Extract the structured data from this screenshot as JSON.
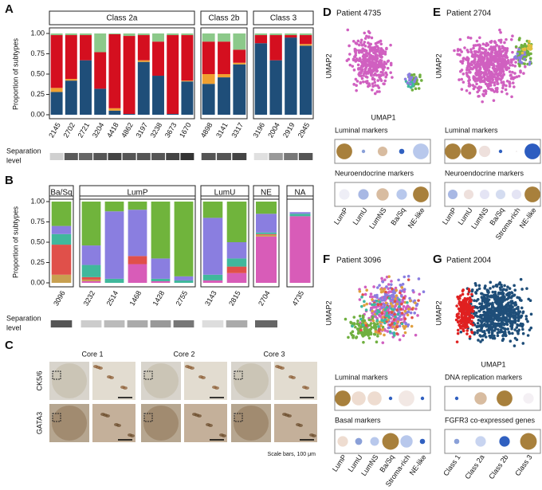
{
  "chart_data": [
    {
      "type": "stacked-bar",
      "panel_label": "A",
      "ylabel": "Proportion of subtypes",
      "ylim": [
        0,
        1
      ],
      "yticks": [
        {
          "value": 0,
          "label": "0.00"
        },
        {
          "value": 0.25,
          "label": "0.25"
        },
        {
          "value": 0.5,
          "label": "0.50"
        },
        {
          "value": 0.75,
          "label": "0.75"
        },
        {
          "value": 1,
          "label": "1.00"
        }
      ],
      "separation_label": [
        "Separation",
        "level"
      ],
      "facets": [
        {
          "title": "Class 2a",
          "categories": [
            "2145",
            "2702",
            "2721",
            "3204",
            "4418",
            "4862",
            "3197",
            "3238",
            "3673",
            "1670"
          ],
          "separation": [
            "#d0d0d0",
            "#5a5a5a",
            "#666666",
            "#555555",
            "#444444",
            "#555555",
            "#555555",
            "#555555",
            "#444444",
            "#333333"
          ],
          "series": [
            {
              "color": "#1f4e79",
              "values": [
                0.28,
                0.42,
                0.67,
                0.32,
                0.05,
                0.01,
                0.65,
                0.48,
                0.01,
                0.41
              ]
            },
            {
              "color": "#f0a030",
              "values": [
                0.05,
                0.02,
                0,
                0,
                0.03,
                0,
                0.02,
                0,
                0,
                0.01
              ]
            },
            {
              "color": "#d40f1f",
              "values": [
                0.65,
                0.54,
                0.31,
                0.45,
                0.91,
                0.96,
                0.31,
                0.42,
                0.97,
                0.56
              ]
            },
            {
              "color": "#8cc98a",
              "values": [
                0.02,
                0.02,
                0.02,
                0.23,
                0.01,
                0.03,
                0.02,
                0.1,
                0.02,
                0.02
              ]
            }
          ]
        },
        {
          "title": "Class 2b",
          "categories": [
            "4898",
            "3141",
            "3317"
          ],
          "separation": [
            "#555555",
            "#555555",
            "#444444"
          ],
          "series": [
            {
              "color": "#1f4e79",
              "values": [
                0.38,
                0.46,
                0.62
              ]
            },
            {
              "color": "#f0a030",
              "values": [
                0.12,
                0.04,
                0.02
              ]
            },
            {
              "color": "#d40f1f",
              "values": [
                0.4,
                0.4,
                0.16
              ]
            },
            {
              "color": "#8cc98a",
              "values": [
                0.1,
                0.1,
                0.2
              ]
            }
          ]
        },
        {
          "title": "Class 3",
          "categories": [
            "3196",
            "2004",
            "2919",
            "2945"
          ],
          "separation": [
            "#e0e0e0",
            "#999999",
            "#777777",
            "#555555"
          ],
          "series": [
            {
              "color": "#1f4e79",
              "values": [
                0.88,
                0.67,
                0.95,
                0.85
              ]
            },
            {
              "color": "#f0a030",
              "values": [
                0,
                0,
                0,
                0.02
              ]
            },
            {
              "color": "#d40f1f",
              "values": [
                0.1,
                0.31,
                0.03,
                0.11
              ]
            },
            {
              "color": "#8cc98a",
              "values": [
                0.02,
                0.02,
                0.02,
                0.02
              ]
            }
          ]
        }
      ]
    },
    {
      "type": "stacked-bar",
      "panel_label": "B",
      "ylabel": "Proportion of subtypes",
      "ylim": [
        0,
        1
      ],
      "yticks": [
        {
          "value": 0,
          "label": "0.00"
        },
        {
          "value": 0.25,
          "label": "0.25"
        },
        {
          "value": 0.5,
          "label": "0.50"
        },
        {
          "value": 0.75,
          "label": "0.75"
        },
        {
          "value": 1,
          "label": "1.00"
        }
      ],
      "separation_label": [
        "Separation",
        "level"
      ],
      "facets": [
        {
          "title": "Ba/Sq",
          "categories": [
            "3096"
          ],
          "separation": [
            "#555555"
          ],
          "series": [
            {
              "color": "#d85cb8",
              "values": [
                0
              ]
            },
            {
              "color": "#c8a050",
              "values": [
                0.1
              ]
            },
            {
              "color": "#e0504a",
              "values": [
                0.37
              ]
            },
            {
              "color": "#40b89c",
              "values": [
                0.13
              ]
            },
            {
              "color": "#8a7ee0",
              "values": [
                0.1
              ]
            },
            {
              "color": "#70b43c",
              "values": [
                0.3
              ]
            }
          ]
        },
        {
          "title": "LumP",
          "categories": [
            "3232",
            "2514",
            "1468",
            "1428",
            "2755"
          ],
          "separation": [
            "#cccccc",
            "#bbbbbb",
            "#aaaaaa",
            "#999999",
            "#777777"
          ],
          "series": [
            {
              "color": "#d85cb8",
              "values": [
                0.02,
                0,
                0.23,
                0.02,
                0
              ]
            },
            {
              "color": "#c8a050",
              "values": [
                0.02,
                0,
                0,
                0,
                0
              ]
            },
            {
              "color": "#e0504a",
              "values": [
                0.03,
                0,
                0.1,
                0,
                0
              ]
            },
            {
              "color": "#40b89c",
              "values": [
                0.15,
                0.05,
                0,
                0.03,
                0.03
              ]
            },
            {
              "color": "#8a7ee0",
              "values": [
                0.24,
                0.83,
                0.57,
                0.25,
                0.05
              ]
            },
            {
              "color": "#70b43c",
              "values": [
                0.54,
                0.12,
                0.1,
                0.7,
                0.92
              ]
            }
          ]
        },
        {
          "title": "LumU",
          "categories": [
            "3143",
            "2815"
          ],
          "separation": [
            "#dddddd",
            "#aaaaaa"
          ],
          "series": [
            {
              "color": "#d85cb8",
              "values": [
                0.03,
                0.12
              ]
            },
            {
              "color": "#c8a050",
              "values": [
                0,
                0
              ]
            },
            {
              "color": "#e0504a",
              "values": [
                0,
                0.08
              ]
            },
            {
              "color": "#40b89c",
              "values": [
                0.07,
                0.1
              ]
            },
            {
              "color": "#8a7ee0",
              "values": [
                0.7,
                0.2
              ]
            },
            {
              "color": "#70b43c",
              "values": [
                0.2,
                0.5
              ]
            }
          ]
        },
        {
          "title": "NE",
          "categories": [
            "2704"
          ],
          "separation": [
            "#666666"
          ],
          "series": [
            {
              "color": "#d85cb8",
              "values": [
                0.57
              ]
            },
            {
              "color": "#c8a050",
              "values": [
                0.02
              ]
            },
            {
              "color": "#e0504a",
              "values": [
                0.01
              ]
            },
            {
              "color": "#40b89c",
              "values": [
                0.02
              ]
            },
            {
              "color": "#8a7ee0",
              "values": [
                0.23
              ]
            },
            {
              "color": "#70b43c",
              "values": [
                0.15
              ]
            }
          ]
        },
        {
          "title": "NA",
          "categories": [
            "4735"
          ],
          "separation": [
            null
          ],
          "series": [
            {
              "color": "#d85cb8",
              "values": [
                0.82
              ]
            },
            {
              "color": "#c8a050",
              "values": [
                0
              ]
            },
            {
              "color": "#e0504a",
              "values": [
                0
              ]
            },
            {
              "color": "#40b89c",
              "values": [
                0.03
              ]
            },
            {
              "color": "#8a7ee0",
              "values": [
                0.02
              ]
            },
            {
              "color": "#70b43c",
              "values": [
                0
              ]
            }
          ]
        }
      ]
    },
    {
      "type": "image-grid",
      "panel_label": "C",
      "columns": [
        "Core 1",
        "Core 2",
        "Core 3"
      ],
      "rows": [
        "CK5/6",
        "GATA3"
      ],
      "note": "Scale bars, 100 μm"
    },
    {
      "type": "umap-dotplot",
      "panel_label": "D",
      "title": "Patient 4735",
      "xlabel": "UMAP1",
      "ylabel": "UMAP2",
      "point_colors": [
        "#d060c0",
        "#70b040",
        "#40b8a0",
        "#8a7ee0"
      ],
      "categories": [
        "LumP",
        "LumU",
        "LumNS",
        "Ba/Sq",
        "NE-like"
      ],
      "rows": [
        {
          "title": "Luminal markers",
          "sizes": [
            0.9,
            0.2,
            0.55,
            0.3,
            0.9
          ],
          "colors": [
            "#a8803c",
            "#8aa0d8",
            "#d8bca0",
            "#3060c0",
            "#b8c8ec"
          ]
        },
        {
          "title": "Neuroendocrine markers",
          "sizes": [
            0.6,
            0.6,
            0.7,
            0.6,
            0.9
          ],
          "colors": [
            "#eeeef6",
            "#a8b8e4",
            "#d8bca0",
            "#b8c8ec",
            "#a8803c"
          ]
        }
      ]
    },
    {
      "type": "umap-dotplot",
      "panel_label": "E",
      "title": "Patient 2704",
      "ylabel": "UMAP2",
      "point_colors": [
        "#d060c0",
        "#70b040",
        "#8a7ee0",
        "#e0c040"
      ],
      "categories": [
        "LumP",
        "LumU",
        "LumNS",
        "Ba/Sq",
        "Stroma-rich",
        "NE-like"
      ],
      "rows": [
        {
          "title": "Luminal markers",
          "sizes": [
            0.9,
            0.9,
            0.65,
            0.2,
            0.1,
            0.9
          ],
          "colors": [
            "#a8803c",
            "#a8803c",
            "#eee0dc",
            "#3060c0",
            "#f4f0f0",
            "#2c5cc0"
          ]
        },
        {
          "title": "Neuroendocrine markers",
          "sizes": [
            0.55,
            0.55,
            0.55,
            0.55,
            0.55,
            0.9
          ],
          "colors": [
            "#a8b8e4",
            "#eee0dc",
            "#e4e4f4",
            "#d4dcf0",
            "#e4e4f4",
            "#a8803c"
          ]
        }
      ]
    },
    {
      "type": "umap-dotplot",
      "panel_label": "F",
      "title": "Patient 3096",
      "ylabel": "UMAP2",
      "point_colors": [
        "#d060c0",
        "#70b040",
        "#8a7ee0",
        "#e0a040",
        "#e0504a",
        "#40b8a0"
      ],
      "categories": [
        "LumP",
        "LumU",
        "LumNS",
        "Ba/Sq",
        "Stroma-rich",
        "NE-like"
      ],
      "rows": [
        {
          "title": "Luminal markers",
          "sizes": [
            0.9,
            0.8,
            0.8,
            0.2,
            0.9,
            0.2
          ],
          "colors": [
            "#a8803c",
            "#eedcd0",
            "#eedcd0",
            "#3060c0",
            "#f2e8e4",
            "#3060c0"
          ]
        },
        {
          "title": "Basal markers",
          "sizes": [
            0.6,
            0.4,
            0.5,
            0.95,
            0.7,
            0.3
          ],
          "colors": [
            "#eedcd0",
            "#8aa0d8",
            "#b8c8ec",
            "#a8803c",
            "#b8c8ec",
            "#3060c0"
          ]
        }
      ]
    },
    {
      "type": "umap-dotplot",
      "panel_label": "G",
      "title": "Patient 2004",
      "xlabel": "UMAP1",
      "ylabel": "UMAP2",
      "point_colors": [
        "#1f4e79",
        "#e02020"
      ],
      "categories": [
        "Class 1",
        "Class 2a",
        "Class 2b",
        "Class 3"
      ],
      "rows": [
        {
          "title": "DNA replication markers",
          "sizes": [
            0.2,
            0.7,
            0.9,
            0.6
          ],
          "colors": [
            "#3060c0",
            "#d8bca0",
            "#a8803c",
            "#f4f0f4"
          ]
        },
        {
          "title": "FGFR3 co-expressed genes",
          "sizes": [
            0.3,
            0.6,
            0.6,
            0.95
          ],
          "colors": [
            "#8aa0d8",
            "#c8d4f0",
            "#3060c0",
            "#a8803c"
          ]
        }
      ]
    }
  ]
}
